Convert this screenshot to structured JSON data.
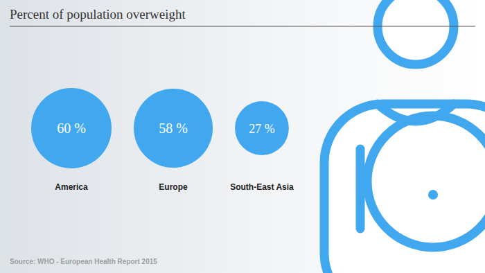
{
  "chart_data": {
    "type": "bubble",
    "title": "Percent of population overweight",
    "categories": [
      "America",
      "Europe",
      "South-East Asia"
    ],
    "values": [
      60,
      58,
      27
    ],
    "value_labels": [
      "60 %",
      "58 %",
      "27 %"
    ],
    "color": "#41a8f0",
    "data_labels": true,
    "source": "Source: WHO - European Health Report 2015"
  }
}
